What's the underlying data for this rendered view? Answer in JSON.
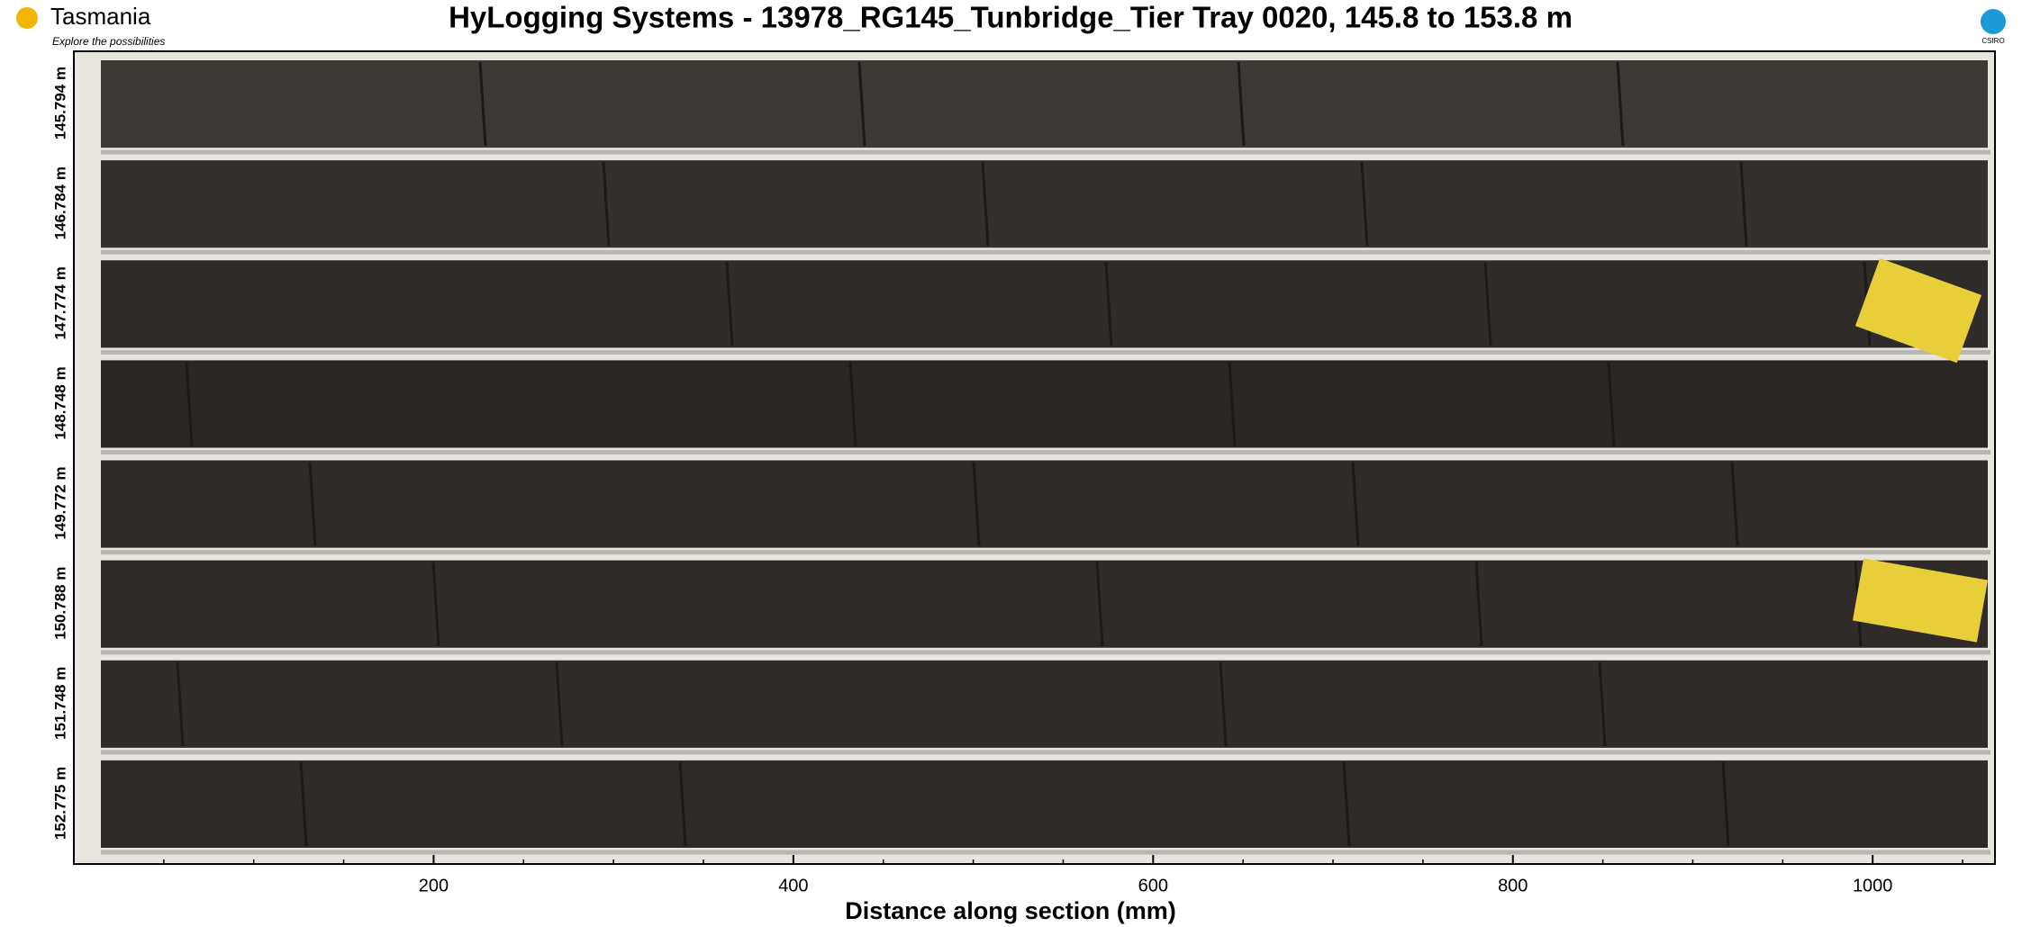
{
  "header": {
    "title": "HyLogging Systems  -  13978_RG145_Tunbridge_Tier  Tray 0020,  145.8 to 153.8 m"
  },
  "logo_left": {
    "name": "Tasmania",
    "tagline": "Explore the possibilities"
  },
  "logo_right": {
    "name": "CSIRO"
  },
  "x_axis": {
    "label": "Distance along section (mm)",
    "xlim": [
      0,
      1068
    ],
    "xticks": [
      200,
      400,
      600,
      800,
      1000
    ],
    "minor_xticks": [
      50,
      100,
      150,
      250,
      300,
      350,
      450,
      500,
      550,
      650,
      700,
      750,
      850,
      900,
      950,
      1050
    ]
  },
  "rows": [
    "145.794 m",
    "146.784 m",
    "147.774 m",
    "148.748 m",
    "149.772 m",
    "150.788 m",
    "151.748 m",
    "152.775 m"
  ]
}
